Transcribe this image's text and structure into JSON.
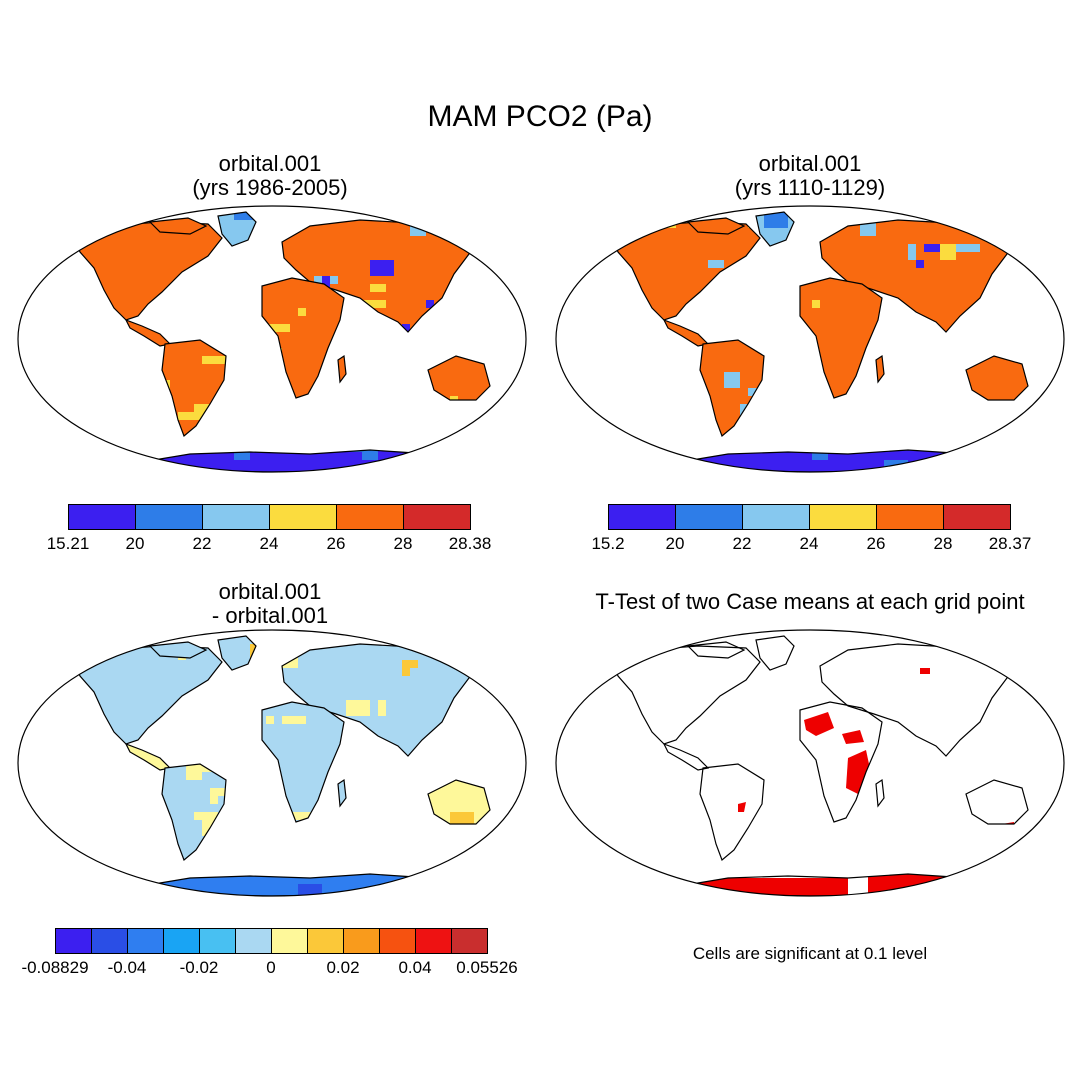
{
  "figure": {
    "title": "MAM PCO2 (Pa)",
    "note": "Cells are significant at 0.1 level"
  },
  "panels": [
    {
      "id": "case1",
      "title_line1": "orbital.001",
      "title_line2": "(yrs 1986-2005)",
      "type": "field"
    },
    {
      "id": "case2",
      "title_line1": "orbital.001",
      "title_line2": "(yrs 1110-1129)",
      "type": "field"
    },
    {
      "id": "diff",
      "title_line1": "orbital.001",
      "title_line2": "- orbital.001",
      "type": "difference"
    },
    {
      "id": "ttest",
      "title_line1": "T-Test of two Case means at each grid point",
      "title_line2": "",
      "type": "significance"
    }
  ],
  "colorbars": [
    {
      "id": "case1",
      "colors": [
        "#3c1ff0",
        "#2e7de8",
        "#86c8ef",
        "#fbdc3e",
        "#f96a10",
        "#d42a2a"
      ],
      "labels": [
        "15.21",
        "20",
        "22",
        "24",
        "26",
        "28",
        "28.38"
      ]
    },
    {
      "id": "case2",
      "colors": [
        "#3c1ff0",
        "#2e7de8",
        "#86c8ef",
        "#fbdc3e",
        "#f96a10",
        "#d42a2a"
      ],
      "labels": [
        "15.2",
        "20",
        "22",
        "24",
        "26",
        "28",
        "28.37"
      ]
    },
    {
      "id": "diff",
      "colors": [
        "#3c1ff0",
        "#2a4ee6",
        "#2f7ef0",
        "#19a4f4",
        "#48c0f2",
        "#aad8f2",
        "#fef89a",
        "#fbc839",
        "#f99b1c",
        "#f65210",
        "#ee1212",
        "#c92e2e"
      ],
      "labels": [
        "-0.08829",
        "-0.04",
        "-0.02",
        "0",
        "0.02",
        "0.04",
        "0.05526"
      ],
      "label_boundaries": [
        0,
        2,
        4,
        6,
        8,
        10,
        12
      ]
    }
  ],
  "legend_colors": {
    "ocean": "#ffffff",
    "coastline": "#000000",
    "significant": "#ee0000"
  }
}
